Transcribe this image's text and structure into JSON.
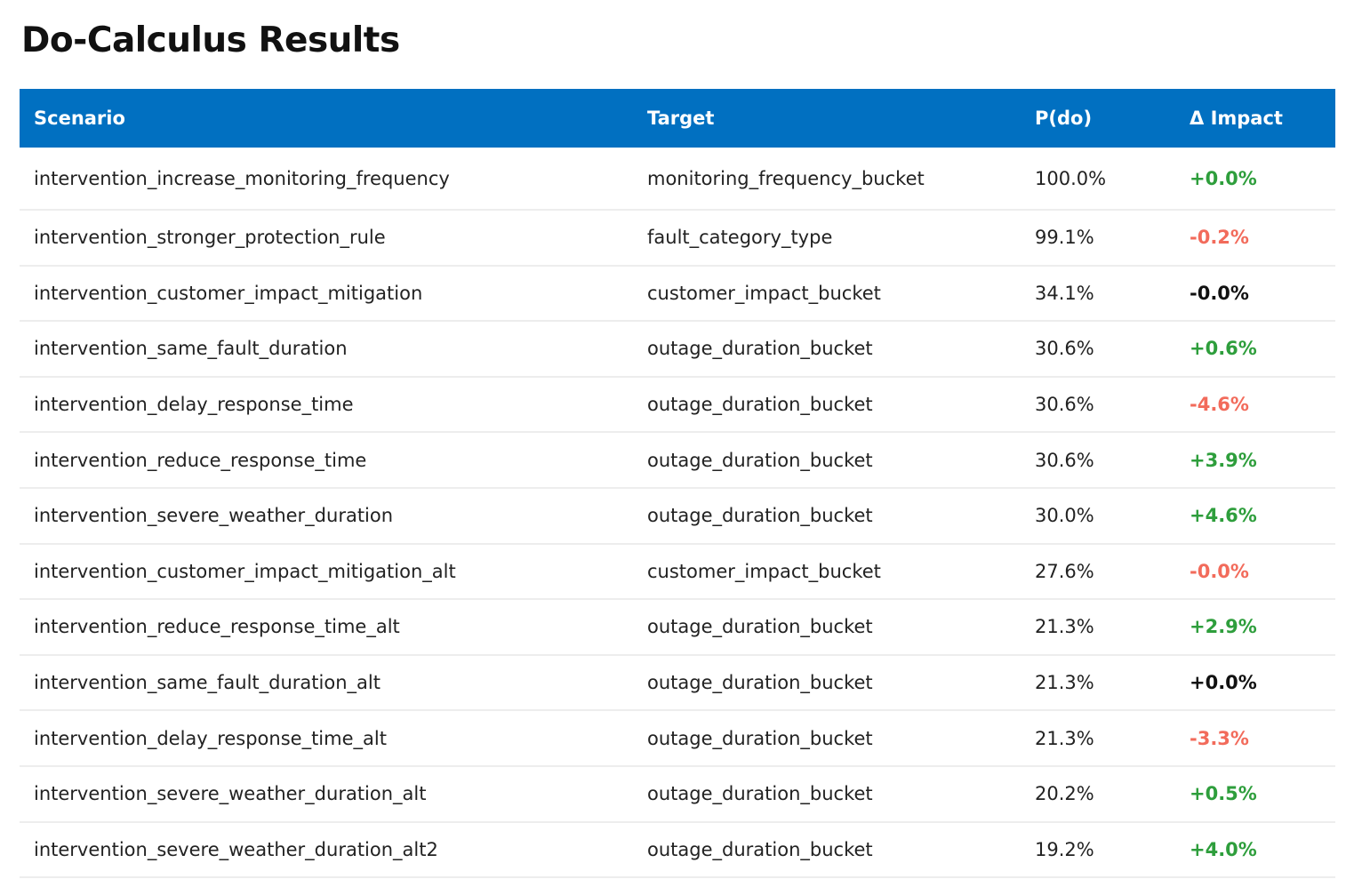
{
  "page": {
    "title": "Do-Calculus Results"
  },
  "table": {
    "headers": {
      "scenario": "Scenario",
      "target": "Target",
      "pdo": "P(do)",
      "impact": "Δ Impact"
    },
    "header_color": "#0170c1",
    "impact_colors": {
      "positive": "#2e9e3c",
      "negative": "#f26b5b",
      "neutral": "#111111"
    },
    "rows": [
      {
        "scenario": "intervention_increase_monitoring_frequency",
        "target": "monitoring_frequency_bucket",
        "pdo": "100.0%",
        "impact": "+0.0%",
        "impact_color": "#2e9e3c"
      },
      {
        "scenario": "intervention_stronger_protection_rule",
        "target": "fault_category_type",
        "pdo": "99.1%",
        "impact": "-0.2%",
        "impact_color": "#f26b5b"
      },
      {
        "scenario": "intervention_customer_impact_mitigation",
        "target": "customer_impact_bucket",
        "pdo": "34.1%",
        "impact": "-0.0%",
        "impact_color": "#111111"
      },
      {
        "scenario": "intervention_same_fault_duration",
        "target": "outage_duration_bucket",
        "pdo": "30.6%",
        "impact": "+0.6%",
        "impact_color": "#2e9e3c"
      },
      {
        "scenario": "intervention_delay_response_time",
        "target": "outage_duration_bucket",
        "pdo": "30.6%",
        "impact": "-4.6%",
        "impact_color": "#f26b5b"
      },
      {
        "scenario": "intervention_reduce_response_time",
        "target": "outage_duration_bucket",
        "pdo": "30.6%",
        "impact": "+3.9%",
        "impact_color": "#2e9e3c"
      },
      {
        "scenario": "intervention_severe_weather_duration",
        "target": "outage_duration_bucket",
        "pdo": "30.0%",
        "impact": "+4.6%",
        "impact_color": "#2e9e3c"
      },
      {
        "scenario": "intervention_customer_impact_mitigation_alt",
        "target": "customer_impact_bucket",
        "pdo": "27.6%",
        "impact": "-0.0%",
        "impact_color": "#f26b5b"
      },
      {
        "scenario": "intervention_reduce_response_time_alt",
        "target": "outage_duration_bucket",
        "pdo": "21.3%",
        "impact": "+2.9%",
        "impact_color": "#2e9e3c"
      },
      {
        "scenario": "intervention_same_fault_duration_alt",
        "target": "outage_duration_bucket",
        "pdo": "21.3%",
        "impact": "+0.0%",
        "impact_color": "#111111"
      },
      {
        "scenario": "intervention_delay_response_time_alt",
        "target": "outage_duration_bucket",
        "pdo": "21.3%",
        "impact": "-3.3%",
        "impact_color": "#f26b5b"
      },
      {
        "scenario": "intervention_severe_weather_duration_alt",
        "target": "outage_duration_bucket",
        "pdo": "20.2%",
        "impact": "+0.5%",
        "impact_color": "#2e9e3c"
      },
      {
        "scenario": "intervention_severe_weather_duration_alt2",
        "target": "outage_duration_bucket",
        "pdo": "19.2%",
        "impact": "+4.0%",
        "impact_color": "#2e9e3c"
      }
    ]
  }
}
